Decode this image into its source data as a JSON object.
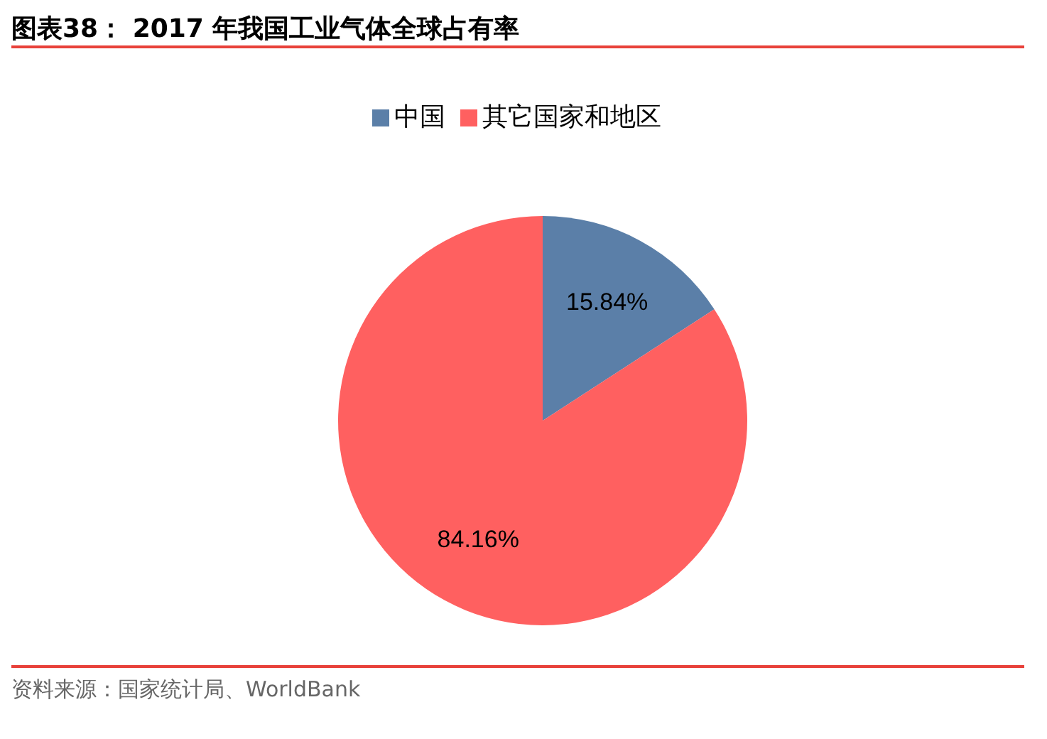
{
  "chart_data": {
    "type": "pie",
    "title": "图表38：  2017 年我国工业气体全球占有率",
    "categories": [
      "中国",
      "其它国家和地区"
    ],
    "values": [
      15.84,
      84.16
    ],
    "value_labels": [
      "15.84%",
      "84.16%"
    ],
    "colors": [
      "#5b7fa8",
      "#ff6060"
    ],
    "legend": "top",
    "annotations": [
      "资料来源：国家统计局、WorldBank"
    ]
  }
}
